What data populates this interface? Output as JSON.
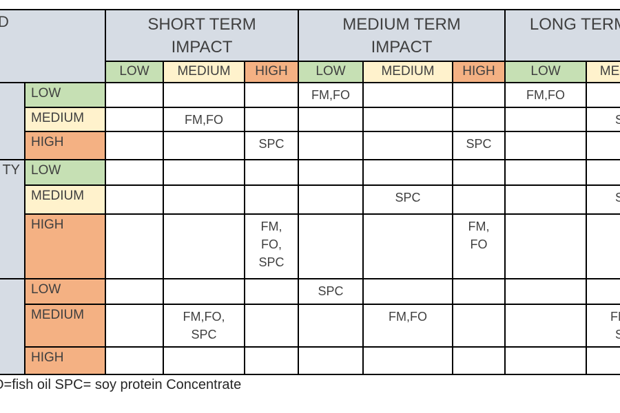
{
  "palette": {
    "header_bg": "#d6dce4",
    "low_green": "#c6e0b4",
    "medium_cream": "#fff2cc",
    "high_orange": "#f4b183",
    "border": "#000000",
    "text": "#3f3f3f",
    "page_bg": "#ffffff"
  },
  "header": {
    "corner_fragment": "D",
    "sections": [
      {
        "title": "SHORT TERM\nIMPACT",
        "levels": [
          "LOW",
          "MEDIUM",
          "HIGH"
        ],
        "level_colors": [
          "green",
          "cream",
          "orange"
        ],
        "clipped": false
      },
      {
        "title": "MEDIUM TERM\nIMPACT",
        "levels": [
          "LOW",
          "MEDIUM",
          "HIGH"
        ],
        "level_colors": [
          "green",
          "cream",
          "orange"
        ],
        "clipped": false
      },
      {
        "title": "LONG TERM",
        "levels": [
          "LOW",
          "ME"
        ],
        "level_colors": [
          "green",
          "cream"
        ],
        "clipped": true
      }
    ]
  },
  "groups": [
    {
      "label_fragment": "",
      "rows": [
        {
          "level": "LOW",
          "color": "green",
          "cells": [
            "",
            "",
            "",
            "FM,FO",
            "",
            "",
            "FM,FO",
            ""
          ]
        },
        {
          "level": "MEDIUM",
          "color": "cream",
          "cells": [
            "",
            "FM,FO",
            "",
            "",
            "",
            "",
            "",
            "S"
          ]
        },
        {
          "level": "HIGH",
          "color": "orange",
          "cells": [
            "",
            "",
            "SPC",
            "",
            "",
            "SPC",
            "",
            ""
          ]
        }
      ]
    },
    {
      "label_fragment": "TY",
      "rows": [
        {
          "level": "LOW",
          "color": "green",
          "cells": [
            "",
            "",
            "",
            "",
            "",
            "",
            "",
            ""
          ]
        },
        {
          "level": "MEDIUM",
          "color": "cream",
          "cells": [
            "",
            "",
            "",
            "",
            "SPC",
            "",
            "",
            "S"
          ]
        },
        {
          "level": "HIGH",
          "color": "orange",
          "cells": [
            "",
            "",
            "FM,\nFO,\nSPC",
            "",
            "",
            "FM,\nFO",
            "",
            ""
          ]
        }
      ]
    },
    {
      "label_fragment": "",
      "rows": [
        {
          "level": "LOW",
          "color": "orange",
          "cells": [
            "",
            "",
            "",
            "SPC",
            "",
            "",
            "",
            ""
          ]
        },
        {
          "level": "MEDIUM",
          "color": "orange",
          "cells": [
            "",
            "FM,FO,\nSPC",
            "",
            "",
            "FM,FO",
            "",
            "",
            "FM\nS"
          ]
        },
        {
          "level": "HIGH",
          "color": "orange",
          "cells": [
            "",
            "",
            "",
            "",
            "",
            "",
            "",
            ""
          ]
        }
      ]
    }
  ],
  "footer": {
    "legend": "O=fish oil SPC= soy protein Concentrate"
  }
}
